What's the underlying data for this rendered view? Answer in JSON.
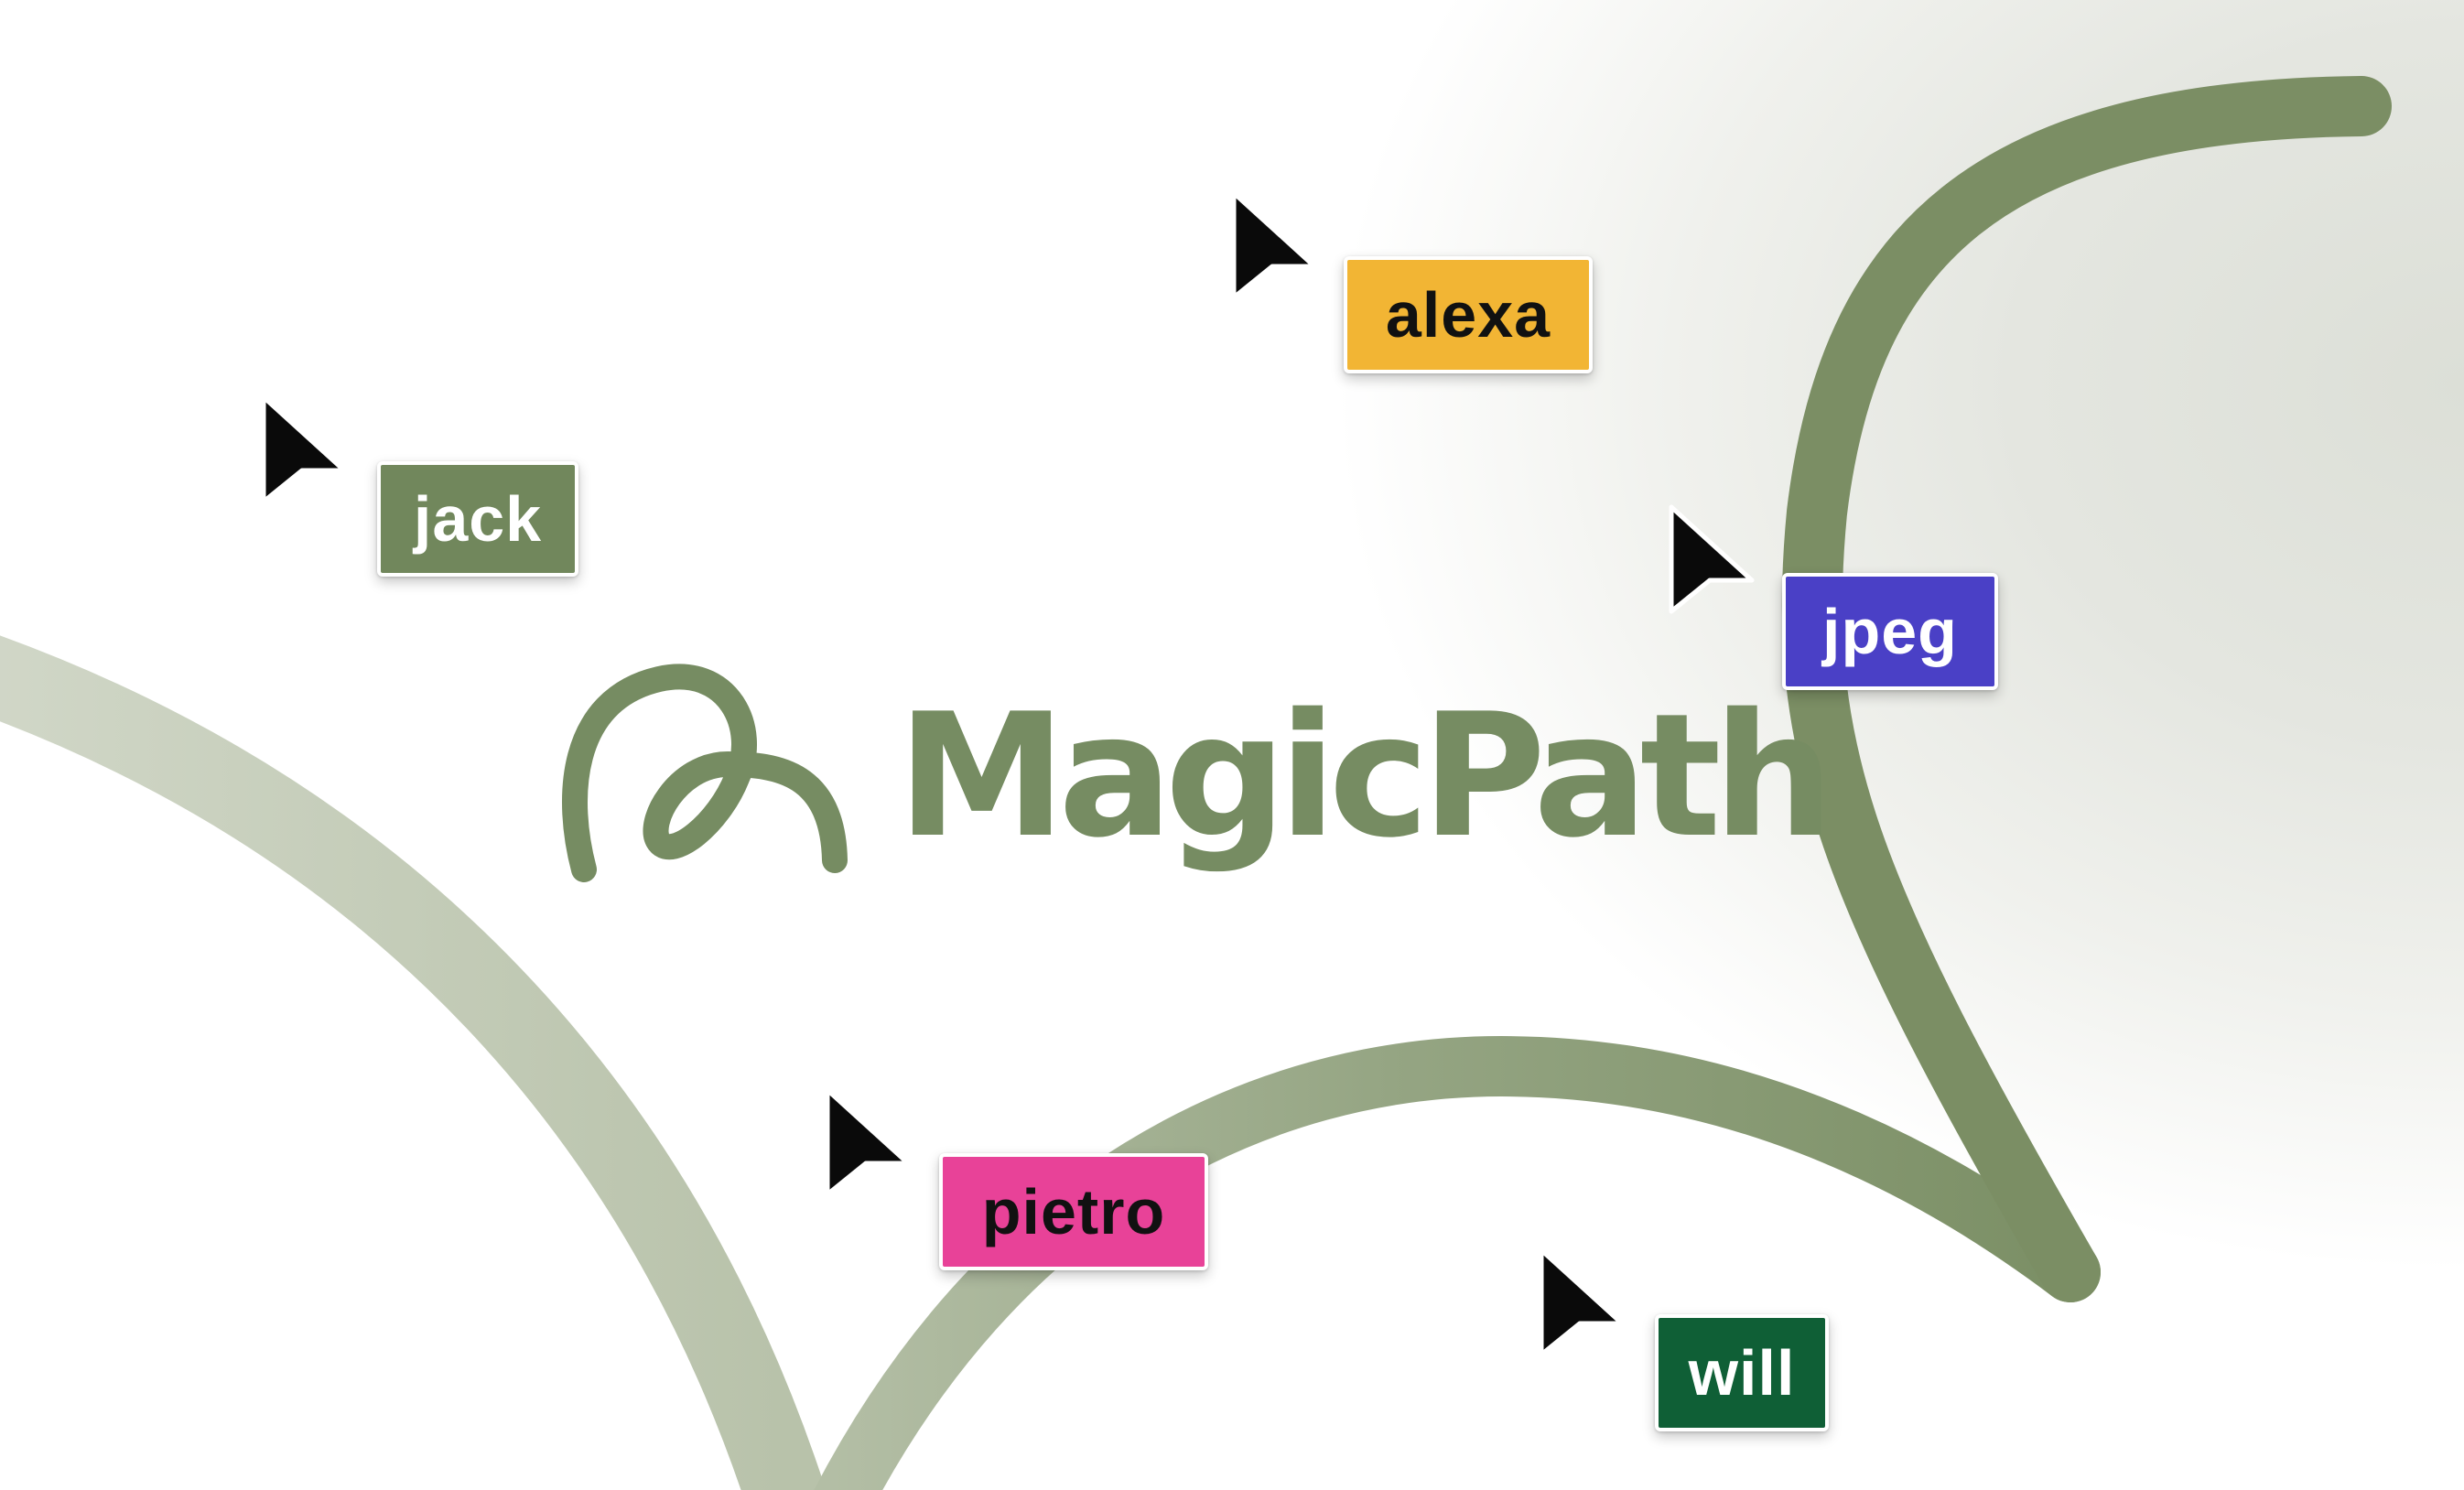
{
  "brand": {
    "name": "MagicPath",
    "icon": "loop-path-icon",
    "color": "#768c62"
  },
  "colors": {
    "curve": "#7e9068",
    "curve_light": "#c5ccbb",
    "cursor": "#0a0a0a"
  },
  "collaborators": [
    {
      "name": "jack",
      "bg": "#71875c",
      "text": "#ffffff",
      "icon": "cursor-arrow-icon"
    },
    {
      "name": "alexa",
      "bg": "#f2b534",
      "text": "#111111",
      "icon": "cursor-arrow-icon"
    },
    {
      "name": "jpeg",
      "bg": "#4a40c6",
      "text": "#ffffff",
      "icon": "cursor-arrow-icon"
    },
    {
      "name": "pietro",
      "bg": "#e84298",
      "text": "#111111",
      "icon": "cursor-arrow-icon"
    },
    {
      "name": "will",
      "bg": "#0f5f36",
      "text": "#ffffff",
      "icon": "cursor-arrow-icon"
    }
  ]
}
